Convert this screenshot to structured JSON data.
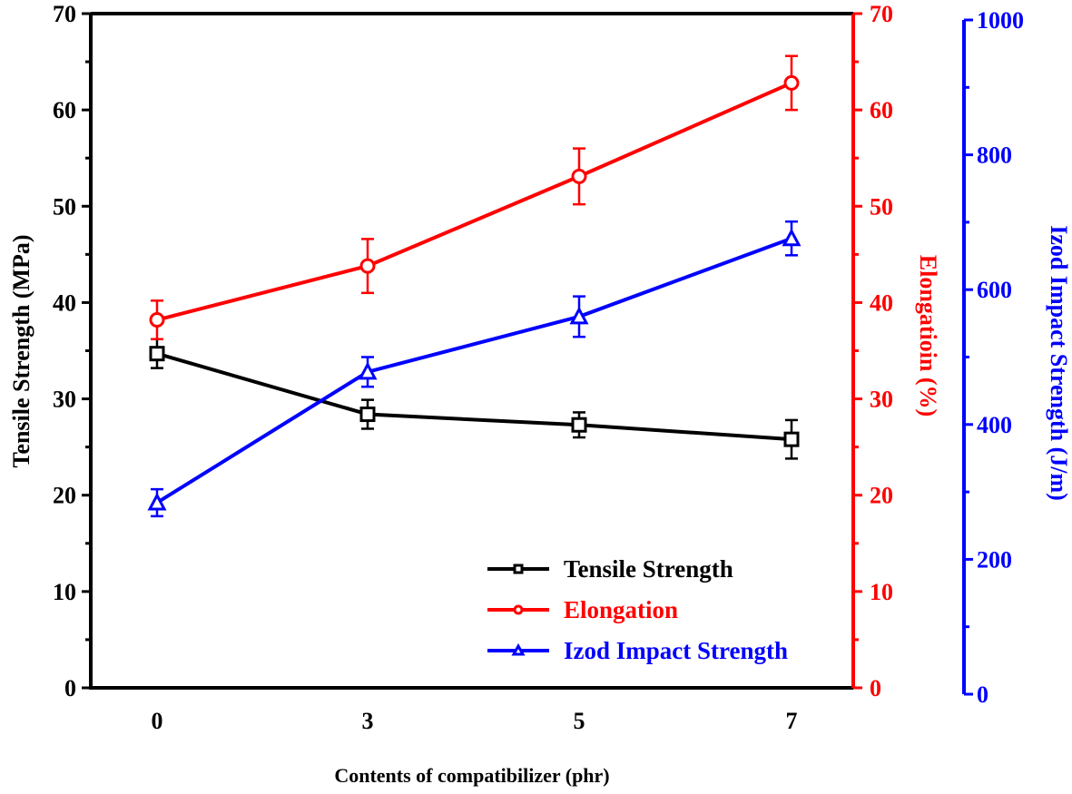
{
  "chart_data": {
    "type": "line",
    "title": "",
    "xlabel": "Contents of compatibilizer (phr)",
    "categories": [
      "0",
      "3",
      "5",
      "7"
    ],
    "axes": {
      "left": {
        "label": "Tensile Strength (MPa)",
        "range": [
          0,
          70
        ],
        "ticks": [
          "0",
          "10",
          "20",
          "30",
          "40",
          "50",
          "60",
          "70"
        ],
        "color": "#000000"
      },
      "right1": {
        "label": "Elongatioin (%)",
        "range": [
          0,
          70
        ],
        "ticks": [
          "0",
          "10",
          "20",
          "30",
          "40",
          "50",
          "60",
          "70"
        ],
        "color": "#ff0000"
      },
      "right2": {
        "label": "Izod Impact Strength (J/m)",
        "range": [
          0,
          1000
        ],
        "ticks": [
          "0",
          "200",
          "400",
          "600",
          "800",
          "1000"
        ],
        "color": "#0000ff"
      }
    },
    "series": [
      {
        "name": "Tensile Strength",
        "axis": "left",
        "marker": "square",
        "color": "#000000",
        "values": [
          34.7,
          28.4,
          27.3,
          25.8
        ],
        "errors": [
          1.5,
          1.5,
          1.3,
          2.0
        ]
      },
      {
        "name": "Elongation",
        "axis": "right1",
        "marker": "circle",
        "color": "#ff0000",
        "values": [
          38.2,
          43.8,
          53.1,
          62.8
        ],
        "errors": [
          2.0,
          2.8,
          2.9,
          2.8
        ]
      },
      {
        "name": "Izod Impact Strength",
        "axis": "right2",
        "marker": "triangle",
        "color": "#0000ff",
        "values": [
          284,
          478,
          560,
          676
        ],
        "errors": [
          20,
          22,
          30,
          25
        ]
      }
    ],
    "legend": {
      "position": "bottom-right",
      "entries": [
        "Tensile Strength",
        "Elongation",
        "Izod Impact Strength"
      ]
    },
    "grid": false
  }
}
